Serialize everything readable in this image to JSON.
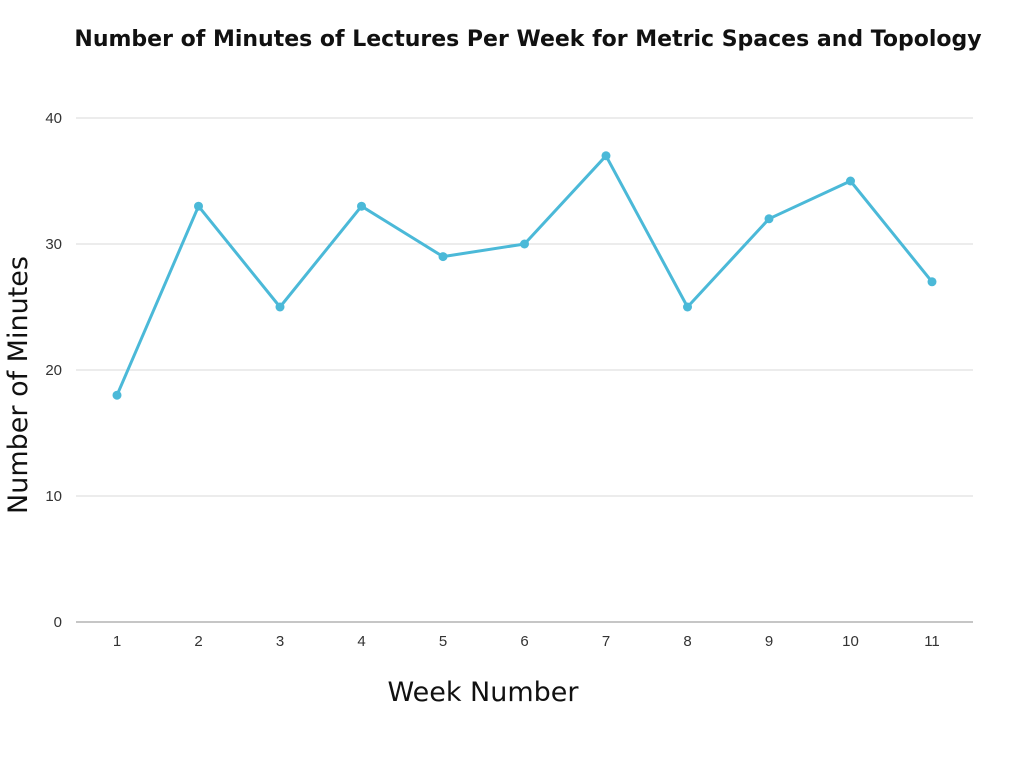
{
  "chart_data": {
    "type": "line",
    "title": "Number of Minutes of Lectures Per Week for Metric Spaces and Topology",
    "xlabel": "Week Number",
    "ylabel": "Number of Minutes",
    "categories": [
      "1",
      "2",
      "3",
      "4",
      "5",
      "6",
      "7",
      "8",
      "9",
      "10",
      "11"
    ],
    "series": [
      {
        "values": [
          18,
          33,
          25,
          33,
          29,
          30,
          37,
          25,
          32,
          35,
          27
        ]
      }
    ],
    "ylim": [
      0,
      40
    ],
    "yticks": [
      0,
      10,
      20,
      30,
      40
    ],
    "grid": "horizontal",
    "legend": "none",
    "colors": {
      "series": "#4bb9d8",
      "grid": "#d9d9d9",
      "baseline": "#8c8c8c"
    }
  }
}
